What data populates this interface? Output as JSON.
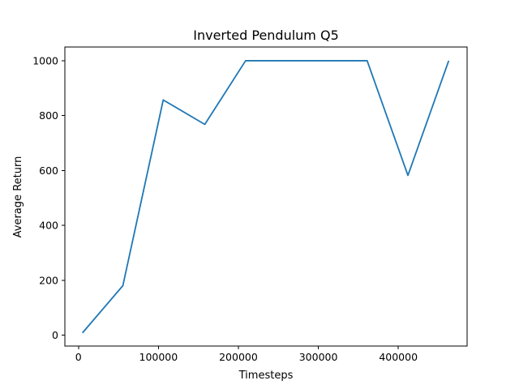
{
  "chart_data": {
    "type": "line",
    "title": "Inverted Pendulum Q5",
    "xlabel": "Timesteps",
    "ylabel": "Average Return",
    "xlim": [
      -17000,
      486000
    ],
    "ylim": [
      -40,
      1050
    ],
    "xticks": [
      0,
      100000,
      200000,
      300000,
      400000
    ],
    "xtick_labels": [
      "0",
      "100000",
      "200000",
      "300000",
      "400000"
    ],
    "yticks": [
      0,
      200,
      400,
      600,
      800,
      1000
    ],
    "ytick_labels": [
      "0",
      "200",
      "400",
      "600",
      "800",
      "1000"
    ],
    "grid": false,
    "series": [
      {
        "color": "#1f77b4",
        "x": [
          5000,
          55500,
          106000,
          158000,
          209000,
          260000,
          311000,
          361000,
          412000,
          463000
        ],
        "y": [
          8,
          180,
          857,
          768,
          1000,
          1000,
          1000,
          1000,
          582,
          1000
        ]
      }
    ]
  }
}
